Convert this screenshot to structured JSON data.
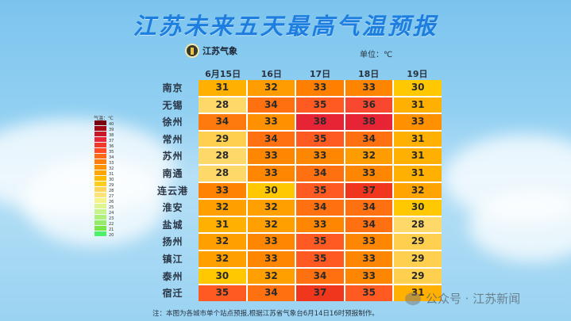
{
  "title": "江苏未来五天最高气温预报",
  "logo": {
    "text": "江苏气象"
  },
  "unit_label": "单位：℃",
  "legend": {
    "title": "气温：℃",
    "steps": [
      {
        "value": "40",
        "color": "#7a0010"
      },
      {
        "value": "39",
        "color": "#a00814"
      },
      {
        "value": "38",
        "color": "#c81826"
      },
      {
        "value": "37",
        "color": "#e8263a"
      },
      {
        "value": "36",
        "color": "#f03a2a"
      },
      {
        "value": "35",
        "color": "#ff4a26"
      },
      {
        "value": "34",
        "color": "#ff6a1a"
      },
      {
        "value": "33",
        "color": "#ff7e0a"
      },
      {
        "value": "32",
        "color": "#ff9400"
      },
      {
        "value": "31",
        "color": "#ffa600"
      },
      {
        "value": "30",
        "color": "#ffbb00"
      },
      {
        "value": "29",
        "color": "#ffcc20"
      },
      {
        "value": "28",
        "color": "#ffd45a"
      },
      {
        "value": "27",
        "color": "#ffe27a"
      },
      {
        "value": "26",
        "color": "#f6f28a"
      },
      {
        "value": "25",
        "color": "#ddf690"
      },
      {
        "value": "24",
        "color": "#c6f48a"
      },
      {
        "value": "23",
        "color": "#aef07c"
      },
      {
        "value": "22",
        "color": "#96ec6a"
      },
      {
        "value": "21",
        "color": "#7ae64c"
      },
      {
        "value": "20",
        "color": "#4cf06a"
      }
    ]
  },
  "chart_data": {
    "type": "heatmap",
    "title": "江苏未来五天最高气温预报",
    "unit": "℃",
    "columns": [
      "6月15日",
      "16日",
      "17日",
      "18日",
      "19日"
    ],
    "rows": [
      "南京",
      "无锡",
      "徐州",
      "常州",
      "苏州",
      "南通",
      "连云港",
      "淮安",
      "盐城",
      "扬州",
      "镇江",
      "泰州",
      "宿迁"
    ],
    "values": [
      [
        31,
        32,
        33,
        33,
        30
      ],
      [
        28,
        34,
        35,
        36,
        31
      ],
      [
        34,
        33,
        38,
        38,
        33
      ],
      [
        29,
        34,
        35,
        34,
        31
      ],
      [
        28,
        33,
        33,
        32,
        31
      ],
      [
        28,
        33,
        34,
        33,
        31
      ],
      [
        33,
        30,
        35,
        37,
        32
      ],
      [
        32,
        32,
        34,
        34,
        30
      ],
      [
        31,
        32,
        33,
        34,
        28
      ],
      [
        32,
        33,
        35,
        33,
        29
      ],
      [
        32,
        33,
        35,
        33,
        29
      ],
      [
        30,
        32,
        34,
        33,
        29
      ],
      [
        35,
        34,
        37,
        35,
        31
      ]
    ],
    "colorscale_range": [
      20,
      40
    ]
  },
  "cell_colors": [
    [
      "#ffb000",
      "#ff9c00",
      "#ff8000",
      "#ff8400",
      "#ffc800"
    ],
    [
      "#ffd86a",
      "#ff7010",
      "#ff5a22",
      "#f84830",
      "#ffb000"
    ],
    [
      "#ff7a0c",
      "#ff9000",
      "#e62436",
      "#e62436",
      "#ff9000"
    ],
    [
      "#ffd050",
      "#ff7010",
      "#ff5a22",
      "#ff7010",
      "#ffb000"
    ],
    [
      "#ffd86a",
      "#ff8600",
      "#ff8600",
      "#ff9c00",
      "#ffb000"
    ],
    [
      "#ffd86a",
      "#ff8600",
      "#ff7010",
      "#ff8600",
      "#ffb000"
    ],
    [
      "#ff8200",
      "#ffc800",
      "#ff5a22",
      "#f0361c",
      "#ffa400"
    ],
    [
      "#ffa000",
      "#ffa000",
      "#ff7010",
      "#ff7010",
      "#ffc800"
    ],
    [
      "#ffb000",
      "#ffa000",
      "#ff8600",
      "#ff7010",
      "#ffd86a"
    ],
    [
      "#ffa000",
      "#ff8600",
      "#ff5a22",
      "#ff8600",
      "#ffd050"
    ],
    [
      "#ffa000",
      "#ff8600",
      "#ff5a22",
      "#ff8600",
      "#ffd050"
    ],
    [
      "#ffc800",
      "#ffa000",
      "#ff7010",
      "#ff8600",
      "#ffd050"
    ],
    [
      "#ff5a22",
      "#ff7010",
      "#f0361c",
      "#ff5a22",
      "#ffb000"
    ]
  ],
  "footer": "注：本图为各城市单个站点预报,根据江苏省气象台6月14日16时预报制作。",
  "watermark": "公众号 · 江苏新闻"
}
